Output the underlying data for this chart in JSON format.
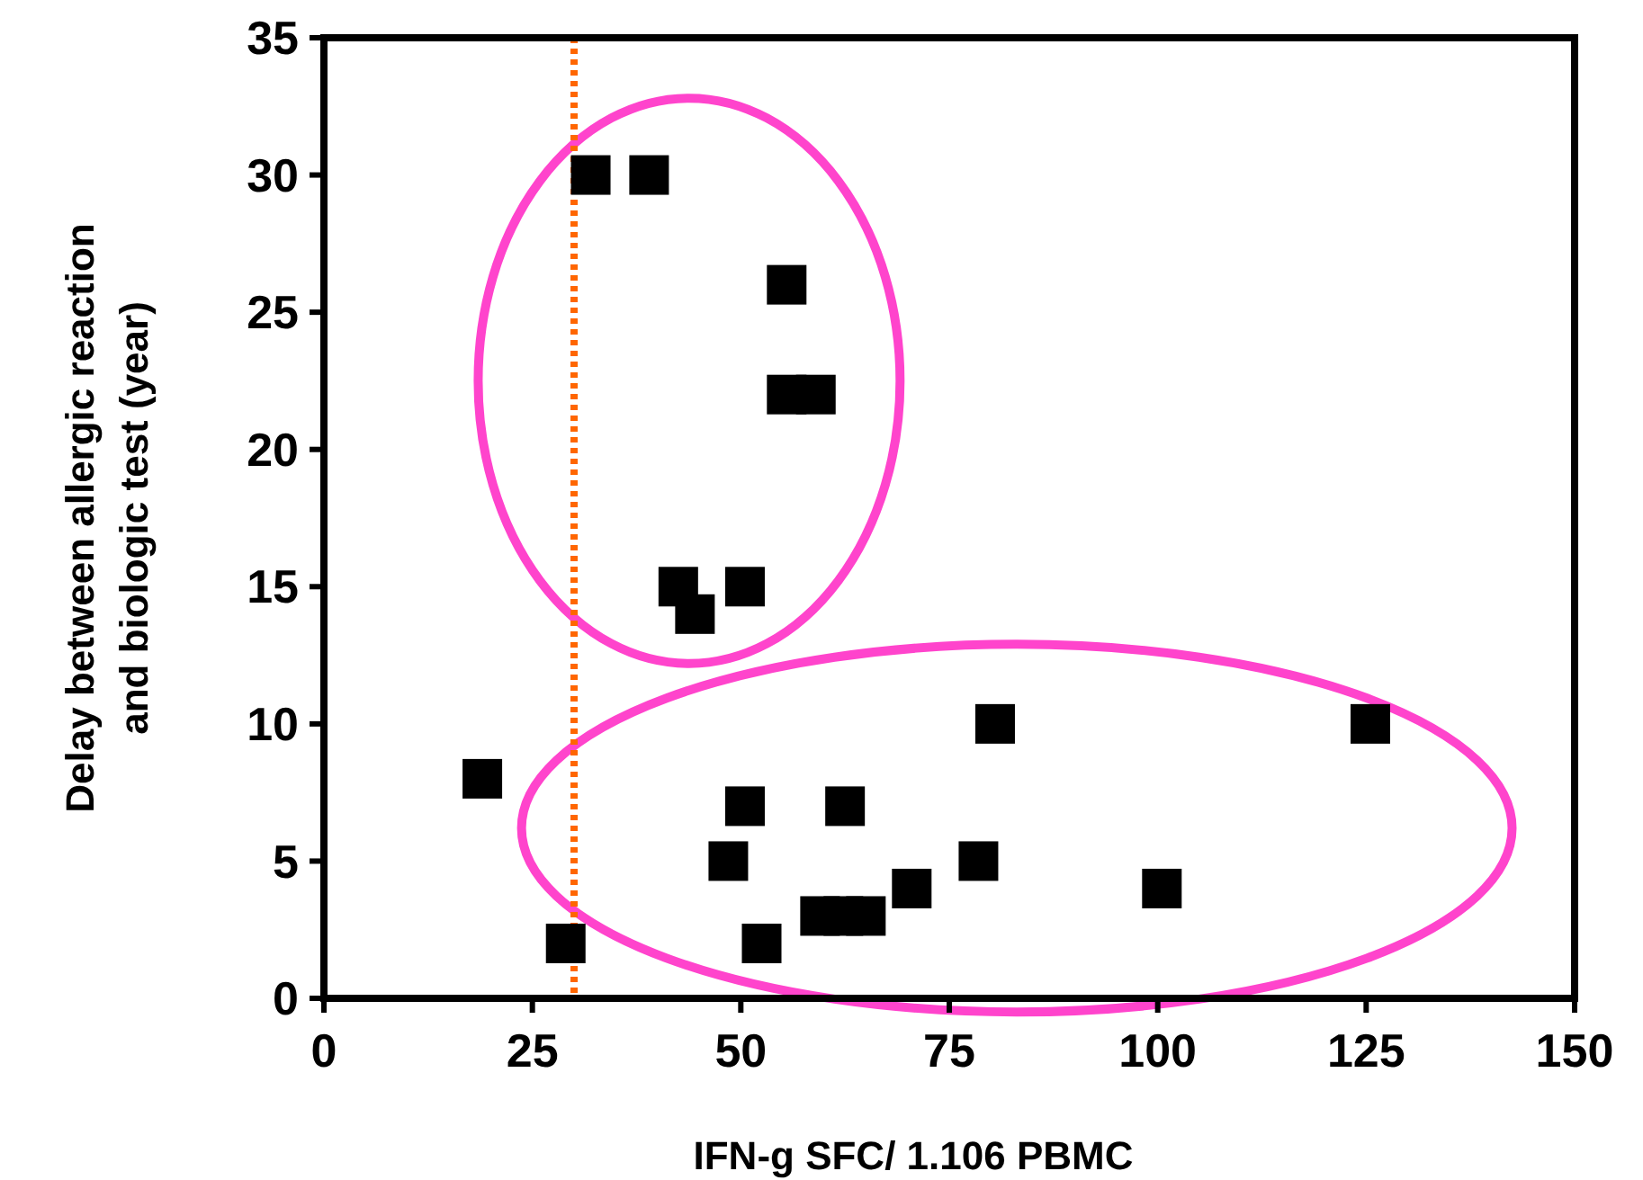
{
  "chart_data": {
    "type": "scatter",
    "xlabel": "IFN-g SFC/ 1.106 PBMC",
    "ylabel": "Delay between allergic reaction\nand biologic test (year)",
    "xlim": [
      0,
      150
    ],
    "xticks": [
      0,
      25,
      50,
      75,
      100,
      125,
      150
    ],
    "ylim": [
      0,
      35
    ],
    "yticks": [
      0,
      5,
      10,
      15,
      20,
      25,
      30,
      35
    ],
    "marker": "square",
    "grid": false,
    "series": [
      {
        "color": "#000000",
        "x": [
          19,
          29,
          32,
          39,
          55.5,
          55.5,
          59,
          42.5,
          50.5,
          44.5,
          80.5,
          125.5,
          50.5,
          62.5,
          48.5,
          78.5,
          70.5,
          100.5,
          59.5,
          62.3,
          65,
          52.5
        ],
        "values": [
          8,
          2,
          30,
          30,
          26,
          22,
          22,
          15,
          15,
          14,
          10,
          10,
          7,
          7,
          5,
          5,
          4,
          4,
          3,
          3,
          3,
          2
        ]
      }
    ],
    "ref_lines": [
      {
        "axis": "x",
        "value": 30,
        "color": "#ff6600",
        "line_style": "dotted"
      }
    ]
  }
}
